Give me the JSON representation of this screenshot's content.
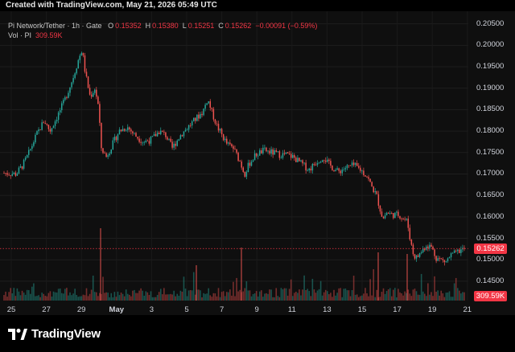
{
  "header": {
    "text": "Created with TradingView.com, May 21, 2026 05:49 UTC"
  },
  "legend": {
    "symbol": "Pi Network/Tether · 1h · Gate",
    "o_label": "O",
    "o_value": "0.15352",
    "h_label": "H",
    "h_value": "0.15380",
    "l_label": "L",
    "l_value": "0.15251",
    "c_label": "C",
    "c_value": "0.15262",
    "change": "−0.00091 (−0.59%)",
    "vol_label": "Vol · PI",
    "vol_value": "309.59K"
  },
  "price_badge": "0.15262",
  "volume_badge": "309.59K",
  "brand": {
    "name": "TradingView"
  },
  "colors": {
    "up": "#26a69a",
    "down": "#ef5350",
    "accent": "#f23645",
    "background": "#0f0f0f"
  },
  "icons": {
    "brand_logo": "tradingview-logo-icon"
  },
  "chart_data": {
    "type": "candlestick",
    "title": "Pi Network/Tether · 1h · Gate",
    "ylim": [
      0.1433,
      0.2055
    ],
    "y_ticks": [
      "0.20500",
      "0.20000",
      "0.19500",
      "0.19000",
      "0.18500",
      "0.18000",
      "0.17500",
      "0.17000",
      "0.16500",
      "0.16000",
      "0.15500",
      "0.15000",
      "0.14500"
    ],
    "x_ticks": [
      "25",
      "27",
      "29",
      "May",
      "3",
      "5",
      "7",
      "9",
      "11",
      "13",
      "15",
      "17",
      "19",
      "21"
    ],
    "path": [
      [
        0,
        0.1703
      ],
      [
        20,
        0.17
      ],
      [
        28,
        0.172
      ],
      [
        35,
        0.1745
      ],
      [
        45,
        0.179
      ],
      [
        55,
        0.1825
      ],
      [
        62,
        0.18
      ],
      [
        70,
        0.183
      ],
      [
        80,
        0.187
      ],
      [
        90,
        0.192
      ],
      [
        98,
        0.197
      ],
      [
        102,
        0.199
      ],
      [
        106,
        0.1935
      ],
      [
        112,
        0.188
      ],
      [
        118,
        0.19
      ],
      [
        122,
        0.186
      ],
      [
        126,
        0.176
      ],
      [
        132,
        0.174
      ],
      [
        140,
        0.177
      ],
      [
        148,
        0.18
      ],
      [
        158,
        0.181
      ],
      [
        168,
        0.179
      ],
      [
        178,
        0.1775
      ],
      [
        188,
        0.178
      ],
      [
        198,
        0.18
      ],
      [
        206,
        0.179
      ],
      [
        214,
        0.176
      ],
      [
        224,
        0.179
      ],
      [
        234,
        0.181
      ],
      [
        244,
        0.183
      ],
      [
        252,
        0.1845
      ],
      [
        258,
        0.1875
      ],
      [
        264,
        0.184
      ],
      [
        270,
        0.181
      ],
      [
        276,
        0.179
      ],
      [
        282,
        0.177
      ],
      [
        290,
        0.176
      ],
      [
        298,
        0.173
      ],
      [
        304,
        0.17
      ],
      [
        310,
        0.1725
      ],
      [
        318,
        0.1745
      ],
      [
        328,
        0.1755
      ],
      [
        338,
        0.175
      ],
      [
        348,
        0.1745
      ],
      [
        356,
        0.1745
      ],
      [
        364,
        0.174
      ],
      [
        374,
        0.1725
      ],
      [
        384,
        0.171
      ],
      [
        394,
        0.173
      ],
      [
        402,
        0.174
      ],
      [
        410,
        0.172
      ],
      [
        420,
        0.1705
      ],
      [
        430,
        0.1715
      ],
      [
        440,
        0.172
      ],
      [
        448,
        0.171
      ],
      [
        456,
        0.1695
      ],
      [
        462,
        0.167
      ],
      [
        468,
        0.165
      ],
      [
        472,
        0.162
      ],
      [
        476,
        0.1595
      ],
      [
        480,
        0.161
      ],
      [
        488,
        0.1605
      ],
      [
        496,
        0.1605
      ],
      [
        502,
        0.1595
      ],
      [
        506,
        0.159
      ],
      [
        510,
        0.1545
      ],
      [
        514,
        0.151
      ],
      [
        518,
        0.1505
      ],
      [
        524,
        0.152
      ],
      [
        530,
        0.1535
      ],
      [
        536,
        0.153
      ],
      [
        542,
        0.1505
      ],
      [
        548,
        0.15
      ],
      [
        554,
        0.1495
      ],
      [
        560,
        0.151
      ],
      [
        566,
        0.1515
      ],
      [
        572,
        0.1522
      ],
      [
        578,
        0.1526
      ]
    ],
    "last_price": 0.15262,
    "last_volume": "309.59K"
  }
}
